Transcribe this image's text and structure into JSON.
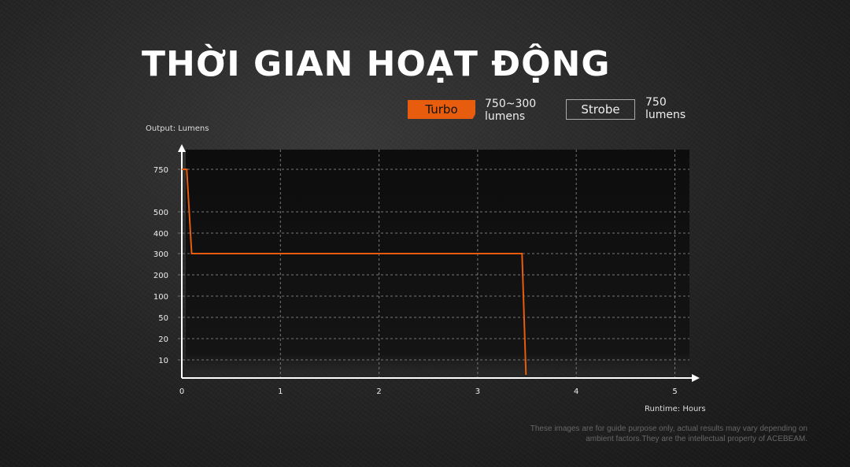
{
  "title": "THỜI GIAN HOẠT ĐỘNG",
  "legend": [
    {
      "label": "Turbo",
      "value": "750~300",
      "unit": "lumens",
      "color": "#e85c0d"
    },
    {
      "label": "Strobe",
      "value": "750",
      "unit": "lumens",
      "color": "#aaaaaa"
    }
  ],
  "disclaimer": {
    "line1": "These images are for guide purpose only, actual results may vary depending on",
    "line2": "ambient factors.They are the intellectual property of ACEBEAM."
  },
  "chart_data": {
    "type": "line",
    "title": "",
    "xlabel": "Runtime: Hours",
    "ylabel": "Output: Lumens",
    "x_ticks": [
      "0",
      "1",
      "2",
      "3",
      "4",
      "5"
    ],
    "y_ticks": [
      "750",
      "500",
      "400",
      "300",
      "200",
      "100",
      "50",
      "20",
      "10"
    ],
    "xlim": [
      0,
      5
    ],
    "y_scale": "non-uniform (categorical ticks)",
    "grid": true,
    "series": [
      {
        "name": "Turbo",
        "color": "#e85c0d",
        "x": [
          0,
          0.05,
          0.1,
          3.45,
          3.49
        ],
        "y": [
          750,
          750,
          300,
          300,
          0
        ]
      }
    ]
  }
}
